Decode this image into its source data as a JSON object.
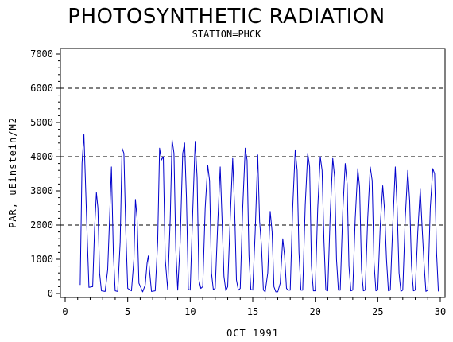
{
  "chart_data": {
    "type": "line",
    "title": "PHOTOSYNTHETIC RADIATION",
    "subtitle": "STATION=PHCK",
    "xlabel": "OCT 1991",
    "ylabel": "PAR, uEinstein/M2",
    "xlim": [
      0,
      30
    ],
    "ylim": [
      0,
      7000
    ],
    "x_ticks": [
      0,
      5,
      10,
      15,
      20,
      25,
      30
    ],
    "y_ticks": [
      0,
      1000,
      2000,
      3000,
      4000,
      5000,
      6000,
      7000
    ],
    "grid_lines_y": [
      2000,
      4000,
      6000
    ],
    "grid": "dashed horizontal at 2000, 4000, 6000",
    "legend": "none",
    "line_color": "#0000cc",
    "series": [
      {
        "x": [
          1.2,
          1.35,
          1.5,
          1.6,
          1.75,
          1.9,
          2.2,
          2.35,
          2.5,
          2.62,
          2.75,
          2.9,
          3.2,
          3.4,
          3.55,
          3.7,
          3.85,
          4.0,
          4.2,
          4.4,
          4.55,
          4.7,
          4.85,
          5.0,
          5.3,
          5.5,
          5.62,
          5.75,
          5.9,
          6.2,
          6.4,
          6.55,
          6.65,
          6.75,
          6.9,
          7.2,
          7.4,
          7.55,
          7.7,
          7.85,
          8.0,
          8.2,
          8.4,
          8.55,
          8.7,
          8.85,
          9.0,
          9.2,
          9.4,
          9.55,
          9.7,
          9.85,
          10.0,
          10.2,
          10.4,
          10.55,
          10.7,
          10.85,
          11.0,
          11.2,
          11.4,
          11.55,
          11.7,
          11.85,
          12.0,
          12.2,
          12.4,
          12.55,
          12.7,
          12.85,
          13.0,
          13.2,
          13.4,
          13.55,
          13.7,
          13.85,
          14.0,
          14.2,
          14.4,
          14.55,
          14.7,
          14.85,
          15.0,
          15.2,
          15.4,
          15.55,
          15.7,
          15.85,
          16.0,
          16.2,
          16.4,
          16.55,
          16.7,
          16.85,
          17.0,
          17.2,
          17.4,
          17.55,
          17.7,
          17.85,
          18.0,
          18.2,
          18.4,
          18.55,
          18.7,
          18.85,
          19.0,
          19.2,
          19.4,
          19.55,
          19.7,
          19.85,
          20.0,
          20.2,
          20.4,
          20.55,
          20.7,
          20.85,
          21.0,
          21.2,
          21.4,
          21.55,
          21.7,
          21.85,
          22.0,
          22.2,
          22.4,
          22.55,
          22.7,
          22.85,
          23.0,
          23.2,
          23.4,
          23.55,
          23.7,
          23.85,
          24.0,
          24.2,
          24.4,
          24.55,
          24.7,
          24.85,
          25.0,
          25.2,
          25.4,
          25.55,
          25.7,
          25.85,
          26.0,
          26.2,
          26.4,
          26.55,
          26.7,
          26.85,
          27.0,
          27.2,
          27.4,
          27.55,
          27.7,
          27.85,
          28.0,
          28.2,
          28.4,
          28.55,
          28.7,
          28.85,
          29.0,
          29.2,
          29.4,
          29.55,
          29.7,
          29.85
        ],
        "values": [
          250,
          3800,
          4650,
          3500,
          1800,
          180,
          200,
          1900,
          2950,
          2500,
          600,
          80,
          60,
          700,
          2200,
          3700,
          1200,
          80,
          60,
          1500,
          4250,
          4100,
          1800,
          150,
          80,
          1000,
          2750,
          2200,
          300,
          50,
          250,
          900,
          1100,
          650,
          60,
          80,
          1500,
          4250,
          3900,
          4000,
          1000,
          120,
          2200,
          4500,
          4100,
          1300,
          100,
          1500,
          4100,
          4400,
          2800,
          120,
          100,
          2400,
          4450,
          3400,
          400,
          150,
          200,
          2500,
          3750,
          3300,
          600,
          120,
          150,
          2000,
          3700,
          2100,
          500,
          80,
          200,
          2200,
          3950,
          2500,
          400,
          100,
          150,
          2500,
          4250,
          3900,
          1100,
          120,
          100,
          1800,
          4050,
          2100,
          1400,
          100,
          50,
          600,
          2400,
          1800,
          200,
          50,
          50,
          300,
          1600,
          1100,
          150,
          100,
          100,
          2500,
          4200,
          3600,
          1200,
          100,
          100,
          2600,
          4100,
          3700,
          800,
          80,
          80,
          2500,
          4000,
          3600,
          1500,
          100,
          80,
          2300,
          3950,
          3400,
          1000,
          100,
          100,
          2400,
          3800,
          3200,
          800,
          80,
          100,
          2200,
          3650,
          3100,
          700,
          80,
          100,
          2200,
          3700,
          3300,
          900,
          80,
          100,
          2000,
          3150,
          2400,
          1000,
          80,
          100,
          2000,
          3700,
          2500,
          600,
          60,
          100,
          2200,
          3600,
          2700,
          800,
          80,
          100,
          1800,
          3050,
          1900,
          900,
          60,
          100,
          2500,
          3650,
          3500,
          1200,
          60
        ]
      }
    ]
  }
}
